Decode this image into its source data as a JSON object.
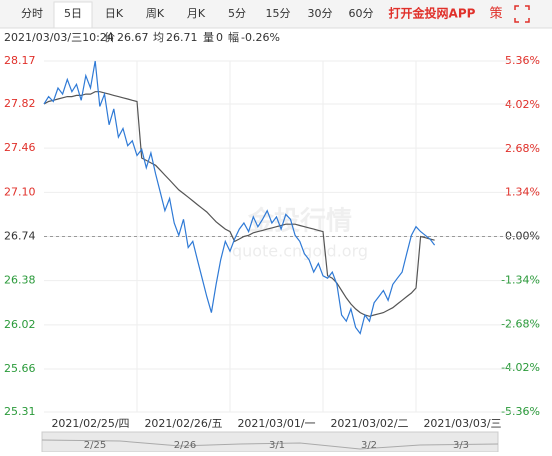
{
  "toolbar": {
    "tabs": [
      "分时",
      "5日",
      "日K",
      "周K",
      "月K",
      "5分",
      "15分",
      "30分",
      "60分"
    ],
    "active_tab": 1,
    "app_link": "打开金投网APP",
    "strategy": "策"
  },
  "info": {
    "datetime": "2021/03/03/三10:24",
    "price_label": "价",
    "price": 26.67,
    "avg_label": "均",
    "avg": 26.71,
    "volume_label": "量",
    "volume": 0,
    "change_label": "幅",
    "change": "-0.26%"
  },
  "chart_data": {
    "type": "line",
    "watermark": "金投行情",
    "watermark_url": "quote.cngold.org",
    "x": [
      0,
      0.05,
      0.1,
      0.15,
      0.2,
      0.25,
      0.3,
      0.35,
      0.4,
      0.45,
      0.5,
      0.55,
      0.6,
      0.65,
      0.7,
      0.75,
      0.8,
      0.85,
      0.9,
      0.95,
      1.0,
      1.05,
      1.1,
      1.15,
      1.2,
      1.25,
      1.3,
      1.35,
      1.4,
      1.45,
      1.5,
      1.55,
      1.6,
      1.65,
      1.7,
      1.75,
      1.8,
      1.85,
      1.9,
      1.95,
      2.0,
      2.05,
      2.1,
      2.15,
      2.2,
      2.25,
      2.3,
      2.35,
      2.4,
      2.45,
      2.5,
      2.55,
      2.6,
      2.65,
      2.7,
      2.75,
      2.8,
      2.85,
      2.9,
      2.95,
      3.0,
      3.05,
      3.1,
      3.15,
      3.2,
      3.25,
      3.3,
      3.35,
      3.4,
      3.45,
      3.5,
      3.55,
      3.6,
      3.65,
      3.7,
      3.75,
      3.8,
      3.85,
      3.9,
      3.95,
      4.0,
      4.05,
      4.1,
      4.15,
      4.2
    ],
    "series": [
      {
        "name": "价",
        "color": "#2f7ad6",
        "values": [
          27.82,
          27.88,
          27.84,
          27.95,
          27.9,
          28.02,
          27.92,
          27.98,
          27.85,
          28.05,
          27.95,
          28.17,
          27.8,
          27.9,
          27.65,
          27.78,
          27.55,
          27.62,
          27.48,
          27.52,
          27.4,
          27.45,
          27.3,
          27.42,
          27.25,
          27.1,
          26.95,
          27.05,
          26.85,
          26.75,
          26.88,
          26.65,
          26.7,
          26.55,
          26.4,
          26.25,
          26.12,
          26.35,
          26.55,
          26.7,
          26.62,
          26.72,
          26.8,
          26.85,
          26.78,
          26.9,
          26.82,
          26.88,
          26.95,
          26.85,
          26.9,
          26.8,
          26.92,
          26.88,
          26.75,
          26.7,
          26.6,
          26.55,
          26.45,
          26.52,
          26.42,
          26.4,
          26.45,
          26.35,
          26.1,
          26.05,
          26.15,
          26.0,
          25.95,
          26.1,
          26.05,
          26.2,
          26.25,
          26.3,
          26.22,
          26.35,
          26.4,
          26.45,
          26.6,
          26.75,
          26.82,
          26.78,
          26.75,
          26.72,
          26.67
        ]
      },
      {
        "name": "均",
        "color": "#555555",
        "values": [
          27.82,
          27.84,
          27.85,
          27.86,
          27.87,
          27.88,
          27.88,
          27.89,
          27.89,
          27.9,
          27.9,
          27.92,
          27.92,
          27.91,
          27.9,
          27.89,
          27.88,
          27.87,
          27.86,
          27.85,
          27.84,
          27.38,
          27.36,
          27.34,
          27.32,
          27.28,
          27.24,
          27.2,
          27.16,
          27.12,
          27.09,
          27.06,
          27.03,
          27.0,
          26.97,
          26.94,
          26.9,
          26.86,
          26.83,
          26.8,
          26.78,
          26.7,
          26.72,
          26.74,
          26.75,
          26.77,
          26.78,
          26.79,
          26.8,
          26.81,
          26.82,
          26.83,
          26.84,
          26.84,
          26.84,
          26.83,
          26.82,
          26.81,
          26.8,
          26.79,
          26.78,
          26.42,
          26.4,
          26.36,
          26.3,
          26.24,
          26.19,
          26.15,
          26.12,
          26.1,
          26.09,
          26.1,
          26.11,
          26.12,
          26.14,
          26.16,
          26.19,
          26.22,
          26.25,
          26.28,
          26.32,
          26.74,
          26.73,
          26.72,
          26.71
        ]
      }
    ],
    "xlim": [
      0,
      5
    ],
    "xticks": [
      {
        "value": 0.5,
        "label": "2021/02/25/四"
      },
      {
        "value": 1.5,
        "label": "2021/02/26/五"
      },
      {
        "value": 2.5,
        "label": "2021/03/01/一"
      },
      {
        "value": 3.5,
        "label": "2021/03/02/二"
      },
      {
        "value": 4.5,
        "label": "2021/03/03/三"
      }
    ],
    "ylim": [
      25.31,
      28.17
    ],
    "yticks": [
      28.17,
      27.82,
      27.46,
      {
        "value": 27.1,
        "label": "27.10"
      },
      26.74,
      26.38,
      {
        "value": 26.02,
        "label": "26.02"
      },
      25.66,
      25.31
    ],
    "y2lim": [
      -5.36,
      5.36
    ],
    "y2ticks": [
      {
        "value": 5.36,
        "label": "5.36%"
      },
      {
        "value": 4.02,
        "label": "4.02%"
      },
      {
        "value": 2.68,
        "label": "2.68%"
      },
      {
        "value": 1.34,
        "label": "1.34%"
      },
      {
        "value": 0,
        "label": "0.00%"
      },
      {
        "value": -1.34,
        "label": "-1.34%"
      },
      {
        "value": -2.68,
        "label": "-2.68%"
      },
      {
        "value": -4.02,
        "label": "-4.02%"
      },
      {
        "value": -5.36,
        "label": "-5.36%"
      }
    ],
    "reference_line": 26.74,
    "up_color": "#e0302a",
    "down_color": "#2a9a3a",
    "grid": true,
    "navigator_labels": [
      "2/25",
      "2/26",
      "3/1",
      "3/2",
      "3/3"
    ]
  }
}
